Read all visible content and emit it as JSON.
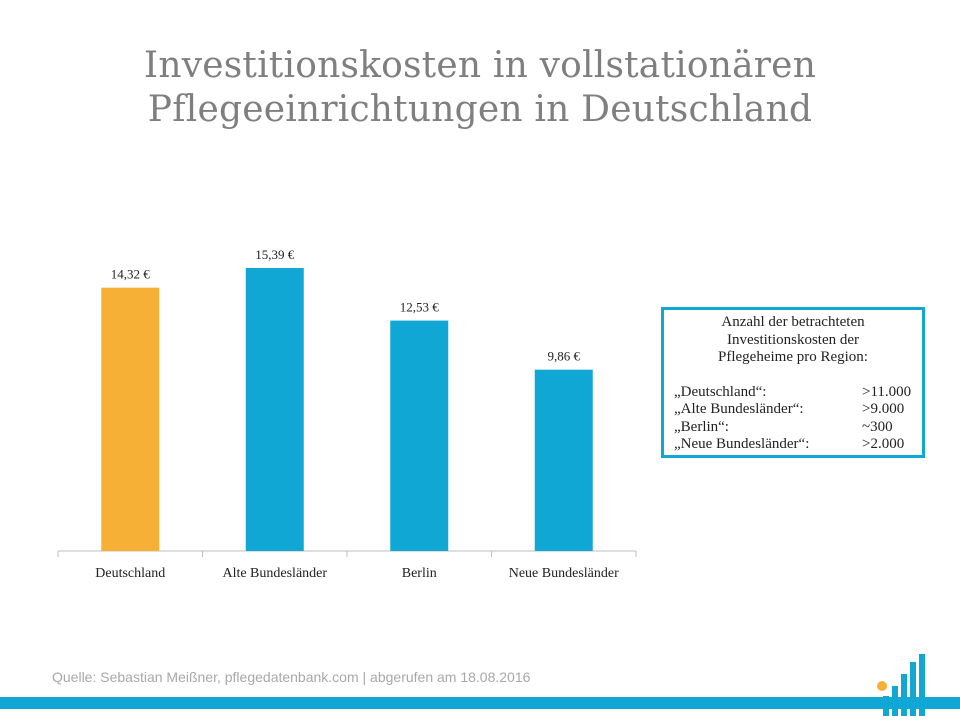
{
  "title": {
    "line1": "Investitionskosten in vollstationären",
    "line2": "Pflegeeinrichtungen in Deutschland"
  },
  "chart_data": {
    "type": "bar",
    "categories": [
      "Deutschland",
      "Alte Bundesländer",
      "Berlin",
      "Neue Bundesländer"
    ],
    "values": [
      14.32,
      15.39,
      12.53,
      9.86
    ],
    "value_labels": [
      "14,32 €",
      "15,39 €",
      "12,53 €",
      "9,86 €"
    ],
    "colors": [
      "#f7b036",
      "#10a7d4",
      "#10a7d4",
      "#10a7d4"
    ],
    "ylim": [
      0,
      18
    ],
    "grid": false
  },
  "infobox": {
    "heading": [
      "Anzahl der betrachteten",
      "Investitionskosten der",
      "Pflegeheime pro Region:"
    ],
    "rows": [
      {
        "label": "„Deutschland“:",
        "value": ">11.000"
      },
      {
        "label": "„Alte Bundesländer“:",
        "value": ">9.000"
      },
      {
        "label": "„Berlin“:",
        "value": "~300"
      },
      {
        "label": "„Neue Bundesländer“:",
        "value": ">2.000"
      }
    ]
  },
  "source": "Quelle: Sebastian Meißner, pflegedatenbank.com | abgerufen am 18.08.2016",
  "colors": {
    "accent": "#10a7d4",
    "highlight": "#f7b036",
    "title": "#7f7f7f"
  }
}
